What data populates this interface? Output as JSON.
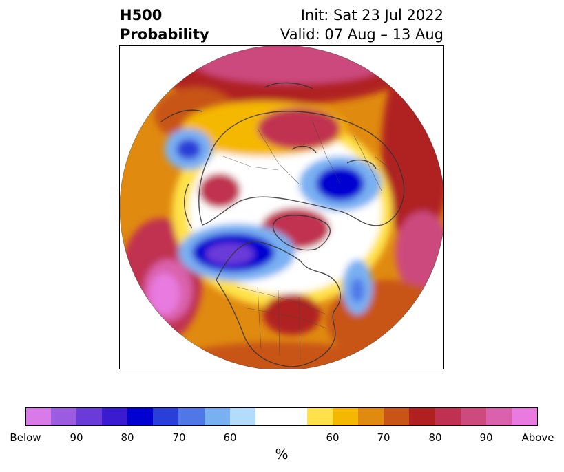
{
  "title": {
    "left_line1": "H500",
    "left_line2": "Probability",
    "right_line1": "Init: Sat 23 Jul 2022",
    "right_line2": "Valid: 07 Aug – 13 Aug"
  },
  "map": {
    "projection": "north-polar-stereographic",
    "features": [
      "continent-coastlines",
      "country-borders",
      "us-state-borders"
    ],
    "anomalies": [
      {
        "region": "north-pacific",
        "sign": "above",
        "peak_pct": 90
      },
      {
        "region": "western-north-america",
        "sign": "below",
        "peak_pct": 90
      },
      {
        "region": "eastern-united-states",
        "sign": "above",
        "peak_pct": 80
      },
      {
        "region": "greenland",
        "sign": "above",
        "peak_pct": 80
      },
      {
        "region": "north-atlantic",
        "sign": "below",
        "peak_pct": 70
      },
      {
        "region": "northwest-europe",
        "sign": "above",
        "peak_pct": 70
      },
      {
        "region": "scandinavia-barents",
        "sign": "below",
        "peak_pct": 90
      },
      {
        "region": "northern-siberia",
        "sign": "above",
        "peak_pct": 80
      },
      {
        "region": "central-asia",
        "sign": "above",
        "peak_pct": 80
      },
      {
        "region": "east-asia",
        "sign": "below",
        "peak_pct": 80
      },
      {
        "region": "russian-far-east",
        "sign": "above",
        "peak_pct": 90
      }
    ]
  },
  "colorbar": {
    "colors": [
      "#d87ae8",
      "#9c5ce0",
      "#6a3bd8",
      "#3a1bd0",
      "#0000d0",
      "#2a3ed8",
      "#4f78e6",
      "#79b0f2",
      "#b2dcfa",
      "#ffffff",
      "#ffe24a",
      "#f5b800",
      "#e08a10",
      "#c85418",
      "#b02020",
      "#c03050",
      "#cc4a7e",
      "#da62ac",
      "#e87ae0"
    ],
    "labels": [
      "Below",
      "90",
      "80",
      "70",
      "60",
      "60",
      "70",
      "80",
      "90",
      "Above"
    ],
    "unit": "%"
  }
}
